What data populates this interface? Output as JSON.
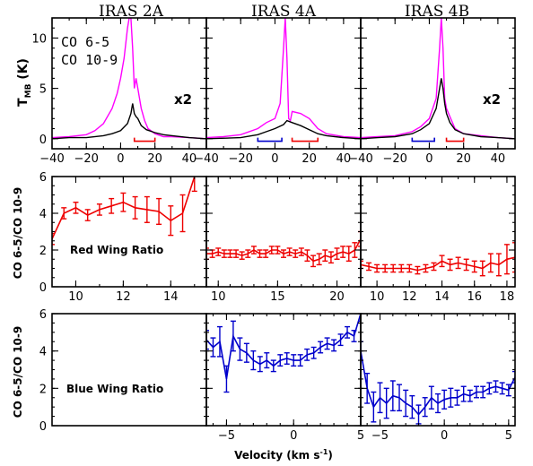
{
  "panel_titles": [
    "IRAS 2A",
    "IRAS 4A",
    "IRAS 4B"
  ],
  "legend": [
    {
      "label": "CO 6-5",
      "color": "#ff00ff"
    },
    {
      "label": "CO 10-9",
      "color": "#000000"
    }
  ],
  "top_ylabel_main": "T",
  "top_ylabel_sub": "MB",
  "top_ylabel_unit": " (K)",
  "mid_ylabel": "CO 6-5/CO 10-9",
  "bot_ylabel": "CO 6-5/CO 10-9",
  "xlabel_main": "Velocity (km s",
  "xlabel_sup": "-1",
  "xlabel_close": ")",
  "x2_label": "x2",
  "red_wing_label": "Red Wing Ratio",
  "blue_wing_label": "Blue Wing Ratio",
  "colors": {
    "co65": "#ff00ff",
    "co109": "#000000",
    "red": "#ee0000",
    "blue": "#0000cc",
    "red_bracket": "#ee0000",
    "blue_bracket": "#0000cc"
  },
  "chart_data": [
    {
      "type": "line",
      "panel": "IRAS 2A spectra",
      "title": "IRAS 2A",
      "xlim": [
        -40,
        50
      ],
      "ylim": [
        -1,
        12
      ],
      "xticks": [
        -40,
        -20,
        0,
        20,
        40
      ],
      "yticks": [
        0,
        5,
        10
      ],
      "annotation": "x2",
      "red_bracket": [
        8,
        20
      ],
      "series": [
        {
          "name": "CO 6-5",
          "x": [
            -40,
            -30,
            -20,
            -15,
            -10,
            -5,
            -2,
            0,
            2,
            4,
            5,
            6,
            7,
            8,
            9,
            10,
            12,
            14,
            16,
            20,
            25,
            30,
            40,
            50
          ],
          "y": [
            0.1,
            0.2,
            0.4,
            0.8,
            1.5,
            3.0,
            4.5,
            6.0,
            8.0,
            11.0,
            12.0,
            12.0,
            9.0,
            5.0,
            6.0,
            5.0,
            3.0,
            1.8,
            1.0,
            0.5,
            0.2,
            0.2,
            0.1,
            0.0
          ]
        },
        {
          "name": "CO 10-9",
          "x": [
            -40,
            -30,
            -20,
            -10,
            -5,
            0,
            4,
            6,
            7,
            8,
            9,
            10,
            12,
            15,
            20,
            25,
            30,
            40,
            50
          ],
          "y": [
            0.0,
            0.1,
            0.1,
            0.3,
            0.5,
            0.8,
            1.5,
            2.5,
            3.5,
            2.5,
            2.2,
            2.0,
            1.3,
            0.9,
            0.6,
            0.4,
            0.3,
            0.1,
            0.0
          ]
        }
      ]
    },
    {
      "type": "line",
      "panel": "IRAS 4A spectra",
      "title": "IRAS 4A",
      "xlim": [
        -40,
        50
      ],
      "ylim": [
        -1,
        12
      ],
      "xticks": [
        -40,
        -20,
        0,
        20,
        40
      ],
      "blue_bracket": [
        -10,
        4
      ],
      "red_bracket": [
        10,
        25
      ],
      "series": [
        {
          "name": "CO 6-5",
          "x": [
            -40,
            -30,
            -20,
            -10,
            -5,
            0,
            3,
            5,
            6,
            7,
            8,
            9,
            10,
            15,
            20,
            25,
            30,
            40,
            50
          ],
          "y": [
            0.1,
            0.2,
            0.4,
            1.0,
            1.6,
            2.0,
            3.5,
            9.0,
            12.0,
            8.0,
            2.0,
            1.8,
            2.7,
            2.5,
            2.0,
            1.0,
            0.5,
            0.2,
            0.1
          ]
        },
        {
          "name": "CO 10-9",
          "x": [
            -40,
            -20,
            -10,
            -5,
            0,
            5,
            7,
            10,
            15,
            20,
            25,
            30,
            40,
            50
          ],
          "y": [
            0.0,
            0.1,
            0.4,
            0.7,
            1.0,
            1.4,
            1.8,
            1.6,
            1.3,
            0.9,
            0.5,
            0.3,
            0.1,
            0.0
          ]
        }
      ]
    },
    {
      "type": "line",
      "panel": "IRAS 4B spectra",
      "title": "IRAS 4B",
      "xlim": [
        -40,
        50
      ],
      "ylim": [
        -1,
        12
      ],
      "xticks": [
        -40,
        -20,
        0,
        20,
        40
      ],
      "annotation": "x2",
      "blue_bracket": [
        -10,
        3
      ],
      "red_bracket": [
        10,
        20
      ],
      "series": [
        {
          "name": "CO 6-5",
          "x": [
            -40,
            -30,
            -20,
            -10,
            -5,
            0,
            4,
            6,
            7,
            8,
            9,
            10,
            12,
            15,
            20,
            30,
            40,
            50
          ],
          "y": [
            0.1,
            0.2,
            0.3,
            0.7,
            1.2,
            2.0,
            4.0,
            9.0,
            12.0,
            9.0,
            4.0,
            3.0,
            2.2,
            1.0,
            0.5,
            0.3,
            0.1,
            0.0
          ]
        },
        {
          "name": "CO 10-9",
          "x": [
            -40,
            -30,
            -20,
            -10,
            -5,
            0,
            4,
            6,
            7,
            8,
            9,
            10,
            12,
            15,
            20,
            30,
            40,
            50
          ],
          "y": [
            0.0,
            0.1,
            0.2,
            0.5,
            0.9,
            1.5,
            3.0,
            5.0,
            6.0,
            5.0,
            3.5,
            2.5,
            1.6,
            0.9,
            0.5,
            0.2,
            0.1,
            0.0
          ]
        }
      ]
    },
    {
      "type": "line",
      "panel": "IRAS 2A red wing ratio",
      "xlim": [
        9,
        15.5
      ],
      "ylim": [
        0,
        6
      ],
      "xticks": [
        10,
        12,
        14
      ],
      "yticks": [
        0,
        2,
        4,
        6
      ],
      "label": "Red Wing Ratio",
      "x": [
        9,
        9.5,
        10,
        10.5,
        11,
        11.5,
        12,
        12.5,
        13,
        13.5,
        14,
        14.5,
        15
      ],
      "y": [
        2.6,
        4.0,
        4.3,
        3.9,
        4.2,
        4.4,
        4.6,
        4.3,
        4.2,
        4.1,
        3.6,
        4.0,
        6.0
      ],
      "err": [
        0.3,
        0.3,
        0.3,
        0.3,
        0.3,
        0.4,
        0.5,
        0.6,
        0.7,
        0.7,
        0.8,
        1.0,
        0.8
      ]
    },
    {
      "type": "line",
      "panel": "IRAS 4A red wing ratio",
      "xlim": [
        9,
        22
      ],
      "ylim": [
        0,
        6
      ],
      "xticks": [
        10,
        15,
        20
      ],
      "x": [
        9,
        9.5,
        10,
        10.5,
        11,
        11.5,
        12,
        12.5,
        13,
        13.5,
        14,
        14.5,
        15,
        15.5,
        16,
        16.5,
        17,
        17.5,
        18,
        18.5,
        19,
        19.5,
        20,
        20.5,
        21,
        21.5,
        22
      ],
      "y": [
        1.8,
        1.8,
        1.9,
        1.8,
        1.8,
        1.8,
        1.7,
        1.8,
        2.0,
        1.8,
        1.8,
        2.0,
        2.0,
        1.8,
        1.9,
        1.8,
        1.9,
        1.7,
        1.4,
        1.5,
        1.7,
        1.6,
        1.8,
        1.9,
        1.8,
        2.0,
        2.6
      ],
      "err": [
        0.3,
        0.2,
        0.2,
        0.2,
        0.2,
        0.2,
        0.2,
        0.2,
        0.2,
        0.2,
        0.2,
        0.2,
        0.2,
        0.2,
        0.2,
        0.2,
        0.2,
        0.3,
        0.3,
        0.3,
        0.3,
        0.3,
        0.3,
        0.3,
        0.4,
        0.4,
        0.4
      ]
    },
    {
      "type": "line",
      "panel": "IRAS 4B red wing ratio",
      "xlim": [
        9,
        18.5
      ],
      "ylim": [
        0,
        6
      ],
      "xticks": [
        10,
        12,
        14,
        16,
        18
      ],
      "x": [
        9,
        9.5,
        10,
        10.5,
        11,
        11.5,
        12,
        12.5,
        13,
        13.5,
        14,
        14.5,
        15,
        15.5,
        16,
        16.5,
        17,
        17.5,
        18,
        18.5
      ],
      "y": [
        1.2,
        1.1,
        1.0,
        1.0,
        1.0,
        1.0,
        1.0,
        0.9,
        1.0,
        1.1,
        1.4,
        1.2,
        1.3,
        1.2,
        1.1,
        1.0,
        1.3,
        1.2,
        1.5,
        1.6
      ],
      "err": [
        0.2,
        0.2,
        0.2,
        0.2,
        0.2,
        0.2,
        0.2,
        0.2,
        0.2,
        0.2,
        0.3,
        0.3,
        0.3,
        0.3,
        0.3,
        0.4,
        0.5,
        0.6,
        0.8,
        0.8
      ]
    },
    {
      "type": "line",
      "panel": "IRAS 2A blue wing ratio",
      "xlim": [
        -6,
        5
      ],
      "ylim": [
        0,
        6
      ],
      "yticks": [
        0,
        2,
        4,
        6
      ],
      "label": "Blue Wing Ratio",
      "x": [],
      "y": [],
      "err": []
    },
    {
      "type": "line",
      "panel": "IRAS 4A blue wing ratio",
      "xlim": [
        -6.5,
        5
      ],
      "ylim": [
        0,
        6
      ],
      "xticks": [
        -5,
        0,
        5
      ],
      "x": [
        -6.5,
        -6,
        -5.5,
        -5,
        -4.5,
        -4,
        -3.5,
        -3,
        -2.5,
        -2,
        -1.5,
        -1,
        -0.5,
        0,
        0.5,
        1,
        1.5,
        2,
        2.5,
        3,
        3.5,
        4,
        4.5,
        5
      ],
      "y": [
        4.6,
        4.2,
        4.5,
        2.5,
        4.8,
        4.1,
        3.9,
        3.5,
        3.3,
        3.5,
        3.2,
        3.5,
        3.6,
        3.5,
        3.5,
        3.8,
        3.9,
        4.2,
        4.4,
        4.3,
        4.6,
        5.0,
        4.8,
        6.0
      ],
      "err": [
        0.5,
        0.5,
        0.8,
        0.7,
        0.8,
        0.6,
        0.5,
        0.5,
        0.4,
        0.4,
        0.3,
        0.3,
        0.3,
        0.3,
        0.3,
        0.3,
        0.3,
        0.3,
        0.3,
        0.3,
        0.3,
        0.3,
        0.3,
        0.4
      ]
    },
    {
      "type": "line",
      "panel": "IRAS 4B blue wing ratio",
      "xlim": [
        -6.5,
        5.5
      ],
      "ylim": [
        0,
        6
      ],
      "xticks": [
        -5,
        0,
        5
      ],
      "x": [
        -6.5,
        -6,
        -5.5,
        -5,
        -4.5,
        -4,
        -3.5,
        -3,
        -2.5,
        -2,
        -1.5,
        -1,
        -0.5,
        0,
        0.5,
        1,
        1.5,
        2,
        2.5,
        3,
        3.5,
        4,
        4.5,
        5,
        5.5
      ],
      "y": [
        4.0,
        2.0,
        1.0,
        1.5,
        1.2,
        1.6,
        1.5,
        1.2,
        1.0,
        0.6,
        1.0,
        1.5,
        1.2,
        1.4,
        1.5,
        1.5,
        1.7,
        1.6,
        1.8,
        1.8,
        2.0,
        2.1,
        2.0,
        1.9,
        2.6
      ],
      "err": [
        0.5,
        0.8,
        0.8,
        0.8,
        0.8,
        0.8,
        0.7,
        0.7,
        0.6,
        0.5,
        0.5,
        0.6,
        0.5,
        0.5,
        0.5,
        0.4,
        0.4,
        0.3,
        0.3,
        0.3,
        0.3,
        0.3,
        0.3,
        0.3,
        0.3
      ]
    }
  ]
}
